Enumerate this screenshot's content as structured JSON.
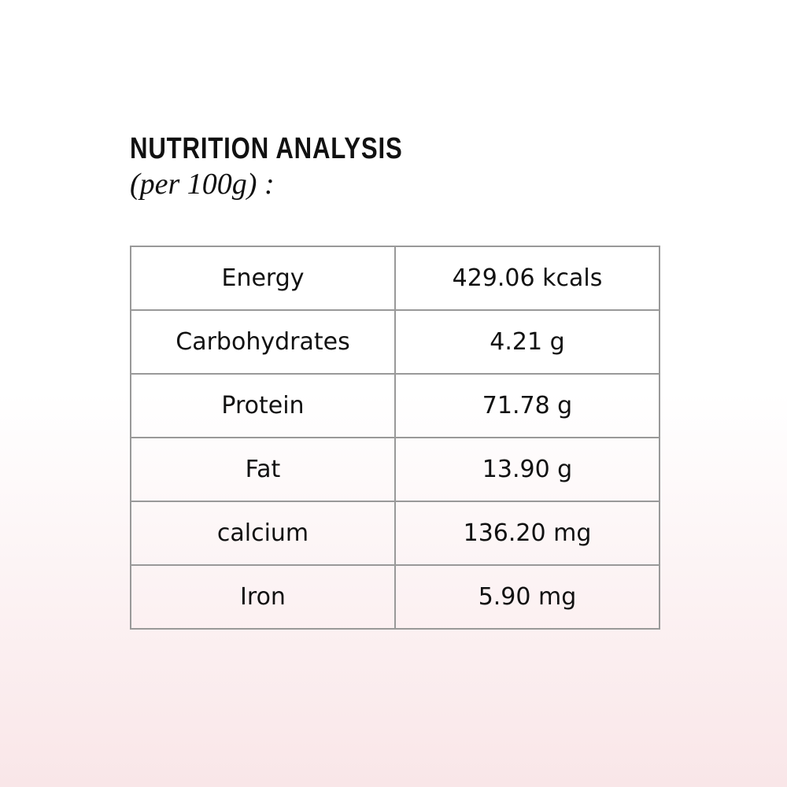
{
  "header": {
    "title": "NUTRITION ANALYSIS",
    "subtitle": "(per 100g) :"
  },
  "table": {
    "rows": [
      [
        "Energy",
        "429.06 kcals"
      ],
      [
        "Carbohydrates",
        "4.21 g"
      ],
      [
        "Protein",
        "71.78 g"
      ],
      [
        "Fat",
        "13.90 g"
      ],
      [
        "calcium",
        "136.20 mg"
      ],
      [
        "Iron",
        "5.90 mg"
      ]
    ]
  }
}
